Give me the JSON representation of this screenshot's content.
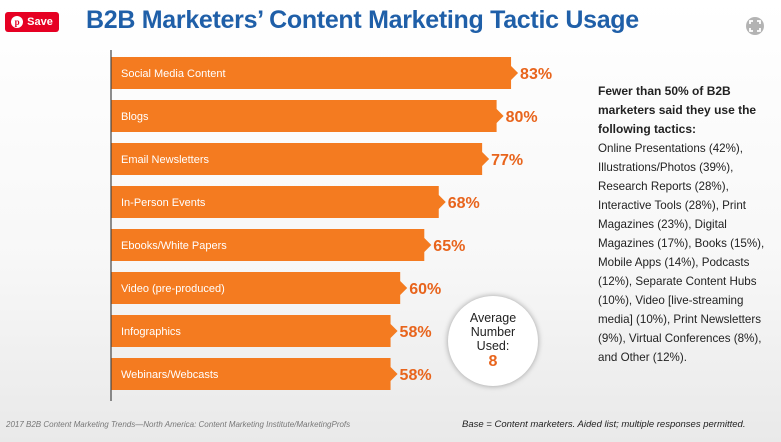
{
  "save_button": {
    "label": "Save",
    "icon": "pinterest-icon"
  },
  "expand_button": {
    "icon": "expand-icon"
  },
  "chart_data": {
    "type": "bar",
    "orientation": "horizontal",
    "title": "B2B Marketers’ Content Marketing Tactic Usage",
    "categories": [
      "Social Media Content",
      "Blogs",
      "Email Newsletters",
      "In-Person Events",
      "Ebooks/White Papers",
      "Video (pre-produced)",
      "Infographics",
      "Webinars/Webcasts"
    ],
    "values": [
      83,
      80,
      77,
      68,
      65,
      60,
      58,
      58
    ],
    "value_labels": [
      "83%",
      "80%",
      "77%",
      "68%",
      "65%",
      "60%",
      "58%",
      "58%"
    ],
    "xlim": [
      0,
      100
    ],
    "bar_color": "#f47b20",
    "value_label_color": "#e8641c",
    "grid": false,
    "legend": "none"
  },
  "average_callout": {
    "label": "Average Number Used:",
    "value": "8"
  },
  "side_note": {
    "lead": "Fewer than 50% of B2B marketers said they use the following tactics:",
    "body": "Online Presentations (42%), Illustrations/Photos (39%), Research Reports (28%), Interactive Tools (28%), Print Magazines (23%), Digital Magazines (17%), Books (15%), Mobile Apps (14%), Podcasts (12%), Separate Content Hubs (10%), Video [live-streaming media] (10%), Print Newsletters (9%), Virtual Conferences (8%), and Other (12%)."
  },
  "footer": {
    "source": "2017 B2B Content Marketing Trends—North America: Content Marketing Institute/MarketingProfs",
    "base": "Base = Content marketers. Aided list; multiple responses permitted."
  }
}
